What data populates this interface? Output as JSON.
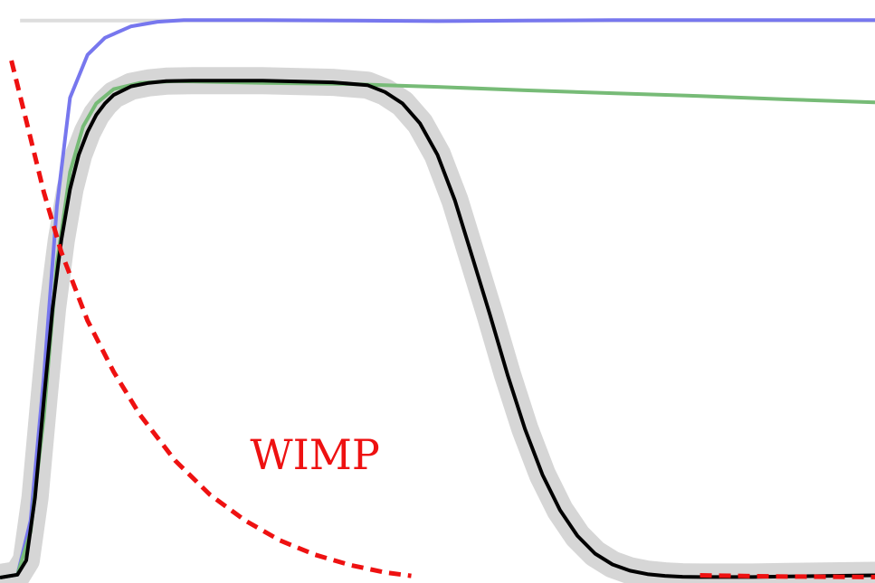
{
  "chart_data": {
    "type": "line",
    "title": "",
    "xlabel": "",
    "ylabel": "",
    "grid": false,
    "legend": "none",
    "xlim": [
      0,
      100
    ],
    "ylim": [
      0,
      100
    ],
    "annotations": [
      {
        "text": "WIMP",
        "x": 36,
        "y": 19,
        "color": "#ee1111"
      }
    ],
    "series": [
      {
        "key": "reference",
        "color": "#dddddd",
        "style": "solid",
        "x": [
          2.3,
          100
        ],
        "y": [
          97.5,
          97.5
        ]
      },
      {
        "key": "blue",
        "color": "#7777ee",
        "style": "solid",
        "x": [
          0,
          2,
          3.5,
          5,
          6.5,
          8,
          10,
          12,
          15,
          18,
          21,
          30,
          40,
          50,
          60,
          70,
          80,
          90,
          100
        ],
        "y": [
          0,
          0.5,
          10,
          35,
          65,
          84,
          91.5,
          94.5,
          96.5,
          97.3,
          97.6,
          97.6,
          97.5,
          97.4,
          97.5,
          97.6,
          97.6,
          97.6,
          97.6
        ]
      },
      {
        "key": "green",
        "color": "#77bb77",
        "style": "solid",
        "x": [
          0,
          2,
          3.5,
          5,
          6.5,
          8,
          9.5,
          11,
          13,
          16,
          20,
          30,
          40,
          50,
          60,
          70,
          80,
          90,
          100
        ],
        "y": [
          0,
          0.5,
          8,
          28,
          55,
          71,
          79,
          83,
          85.5,
          86.6,
          86.9,
          86.6,
          86.4,
          85.9,
          85.3,
          84.8,
          84.3,
          83.7,
          83.2
        ]
      },
      {
        "key": "black",
        "color": "#000000",
        "style": "solid",
        "band_color": "#d6d6d6",
        "x": [
          0,
          2,
          3,
          4,
          5,
          6,
          7,
          8,
          9,
          10,
          11,
          12,
          13,
          15,
          17,
          19,
          22,
          30,
          38,
          42,
          44,
          46,
          48,
          50,
          52,
          54,
          56,
          58,
          60,
          62,
          64,
          66,
          68,
          70,
          72,
          74,
          76,
          78,
          80,
          83,
          86,
          90,
          95,
          100
        ],
        "y": [
          0,
          0.5,
          3,
          14,
          31,
          47,
          59,
          68,
          74,
          78,
          81,
          83,
          84.5,
          86,
          86.6,
          86.9,
          87,
          87,
          86.7,
          86.2,
          85,
          83,
          79.5,
          74,
          66,
          56,
          46,
          35.5,
          26,
          18,
          11.8,
          7.3,
          4.2,
          2.3,
          1.2,
          0.6,
          0.3,
          0.15,
          0.1,
          0.1,
          0.1,
          0.2,
          0.3,
          0.4
        ]
      },
      {
        "key": "wimp",
        "color": "#ee1111",
        "style": "dashed",
        "x": [
          1.3,
          3,
          5,
          7,
          10,
          13,
          16,
          20,
          24,
          28,
          32,
          36,
          40,
          44,
          47
        ],
        "y": [
          90.5,
          80,
          67.5,
          57,
          45,
          36,
          28.5,
          20.5,
          14.5,
          10,
          6.5,
          4,
          2.2,
          0.9,
          0.3
        ]
      },
      {
        "key": "wimp-tail",
        "color": "#ee1111",
        "style": "dashed",
        "x": [
          80,
          88,
          100
        ],
        "y": [
          0.4,
          0.2,
          0.1
        ]
      }
    ]
  }
}
